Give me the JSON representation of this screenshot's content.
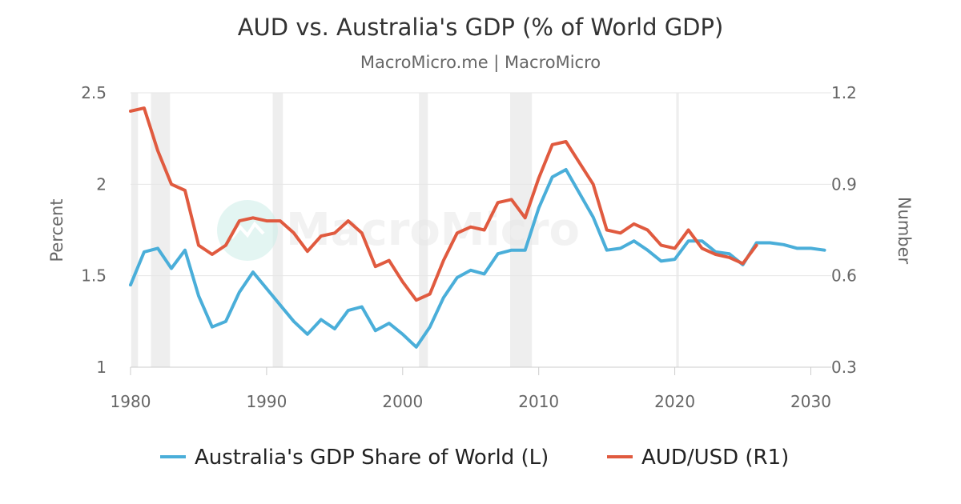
{
  "chart_data": {
    "type": "line",
    "title": "AUD vs. Australia's GDP (% of World GDP)",
    "subtitle": "MacroMicro.me | MacroMicro",
    "watermark": "MacroMicro",
    "xlabel": "",
    "xlim": [
      1980,
      2031.5
    ],
    "x_ticks": [
      1980,
      1990,
      2000,
      2010,
      2020,
      2030
    ],
    "y_left": {
      "label": "Percent",
      "range": [
        1,
        2.5
      ],
      "ticks": [
        "1",
        "1.5",
        "2",
        "2.5"
      ]
    },
    "y_right": {
      "label": "Number",
      "range": [
        0.3,
        1.2
      ],
      "ticks": [
        "0.3",
        "0.6",
        "0.9",
        "1.2"
      ]
    },
    "grid": true,
    "legend_position": "bottom-center",
    "recession_bands": [
      [
        1980.05,
        1980.55
      ],
      [
        1981.5,
        1982.9
      ],
      [
        1990.45,
        1991.2
      ],
      [
        2001.2,
        2001.85
      ],
      [
        2007.9,
        2009.5
      ],
      [
        2020.1,
        2020.3
      ]
    ],
    "colors": {
      "recession": "#eeeeee",
      "grid": "#e6e6e6",
      "axis": "#cccccc"
    },
    "series": [
      {
        "name": "Australia's GDP Share of World (L)",
        "axis": "left",
        "color": "#4aaed9",
        "x": [
          1980,
          1981,
          1982,
          1983,
          1984,
          1985,
          1986,
          1987,
          1988,
          1989,
          1990,
          1991,
          1992,
          1993,
          1994,
          1995,
          1996,
          1997,
          1998,
          1999,
          2000,
          2001,
          2002,
          2003,
          2004,
          2005,
          2006,
          2007,
          2008,
          2009,
          2010,
          2011,
          2012,
          2013,
          2014,
          2015,
          2016,
          2017,
          2018,
          2019,
          2020,
          2021,
          2022,
          2023,
          2024,
          2025,
          2026,
          2027,
          2028,
          2029,
          2030,
          2031
        ],
        "values": [
          1.45,
          1.63,
          1.65,
          1.54,
          1.64,
          1.39,
          1.22,
          1.25,
          1.41,
          1.52,
          1.43,
          1.34,
          1.25,
          1.18,
          1.26,
          1.21,
          1.31,
          1.33,
          1.2,
          1.24,
          1.18,
          1.11,
          1.22,
          1.38,
          1.49,
          1.53,
          1.51,
          1.62,
          1.64,
          1.64,
          1.87,
          2.04,
          2.08,
          1.95,
          1.82,
          1.64,
          1.65,
          1.69,
          1.64,
          1.58,
          1.59,
          1.69,
          1.69,
          1.63,
          1.62,
          1.56,
          1.68,
          1.68,
          1.67,
          1.65,
          1.65,
          1.64
        ]
      },
      {
        "name": "AUD/USD (R1)",
        "axis": "right",
        "color": "#e05a3f",
        "x": [
          1980,
          1981,
          1982,
          1983,
          1984,
          1985,
          1986,
          1987,
          1988,
          1989,
          1990,
          1991,
          1992,
          1993,
          1994,
          1995,
          1996,
          1997,
          1998,
          1999,
          2000,
          2001,
          2002,
          2003,
          2004,
          2005,
          2006,
          2007,
          2008,
          2009,
          2010,
          2011,
          2012,
          2013,
          2014,
          2015,
          2016,
          2017,
          2018,
          2019,
          2020,
          2021,
          2022,
          2023,
          2024,
          2025,
          2026
        ],
        "values": [
          1.14,
          1.15,
          1.01,
          0.9,
          0.88,
          0.7,
          0.67,
          0.7,
          0.78,
          0.79,
          0.78,
          0.78,
          0.74,
          0.68,
          0.73,
          0.74,
          0.78,
          0.74,
          0.63,
          0.65,
          0.58,
          0.52,
          0.54,
          0.65,
          0.74,
          0.76,
          0.75,
          0.84,
          0.85,
          0.79,
          0.92,
          1.03,
          1.04,
          0.97,
          0.9,
          0.75,
          0.74,
          0.77,
          0.75,
          0.7,
          0.69,
          0.75,
          0.69,
          0.67,
          0.66,
          0.64,
          0.7
        ]
      }
    ]
  }
}
